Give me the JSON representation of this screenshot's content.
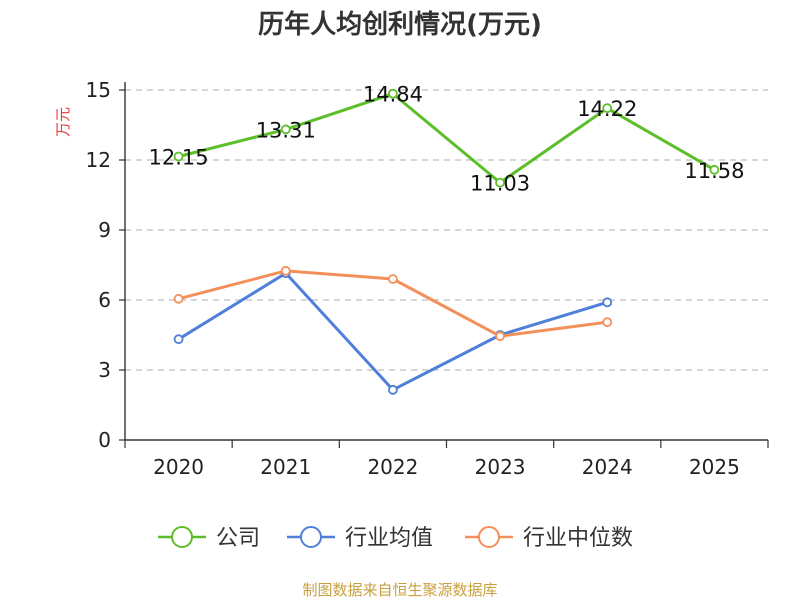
{
  "chart_data": {
    "type": "line",
    "title": "历年人均创利情况(万元)",
    "ylabel": "万元",
    "ylim": [
      0,
      15
    ],
    "yticks": [
      0,
      3,
      6,
      9,
      12,
      15
    ],
    "categories": [
      "2020",
      "2021",
      "2022",
      "2023",
      "2024",
      "2025"
    ],
    "grid": true,
    "legend_position": "bottom",
    "series": [
      {
        "name": "公司",
        "color": "#5cbf2a",
        "values": [
          12.15,
          13.31,
          14.84,
          11.03,
          14.22,
          11.58
        ],
        "show_labels": true
      },
      {
        "name": "行业均值",
        "color": "#4f7fd9",
        "values": [
          4.32,
          7.15,
          2.15,
          4.5,
          5.9,
          null
        ],
        "show_labels": false
      },
      {
        "name": "行业中位数",
        "color": "#f48f5a",
        "values": [
          6.05,
          7.25,
          6.9,
          4.45,
          5.05,
          null
        ],
        "show_labels": false
      }
    ]
  },
  "ylabel_color": "#e03a3a",
  "footer": {
    "text": "制图数据来自恒生聚源数据库",
    "color": "#c8a040"
  }
}
